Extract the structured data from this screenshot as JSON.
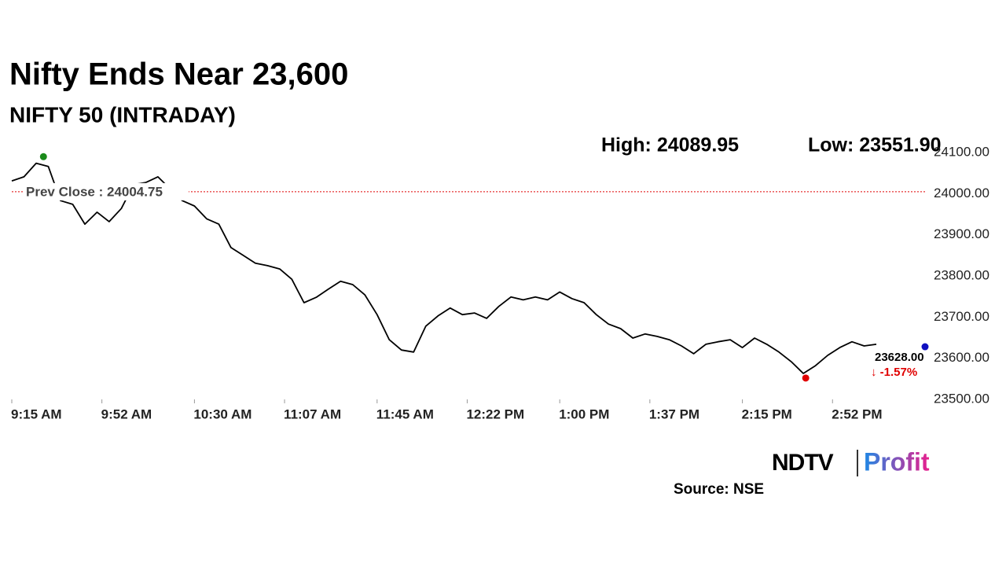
{
  "chart_data": {
    "type": "line",
    "title": "Nifty Ends Near 23,600",
    "subtitle": "NIFTY 50 (INTRADAY)",
    "x": [
      "9:15 AM",
      "9:20 AM",
      "9:25 AM",
      "9:30 AM",
      "9:35 AM",
      "9:40 AM",
      "9:45 AM",
      "9:50 AM",
      "9:55 AM",
      "10:00 AM",
      "10:05 AM",
      "10:10 AM",
      "10:15 AM",
      "10:20 AM",
      "10:25 AM",
      "10:30 AM",
      "10:35 AM",
      "10:40 AM",
      "10:45 AM",
      "10:50 AM",
      "10:55 AM",
      "11:00 AM",
      "11:05 AM",
      "11:10 AM",
      "11:15 AM",
      "11:20 AM",
      "11:25 AM",
      "11:30 AM",
      "11:35 AM",
      "11:40 AM",
      "11:45 AM",
      "11:50 AM",
      "11:55 AM",
      "12:00 PM",
      "12:05 PM",
      "12:10 PM",
      "12:15 PM",
      "12:20 PM",
      "12:25 PM",
      "12:30 PM",
      "12:35 PM",
      "12:40 PM",
      "12:45 PM",
      "12:50 PM",
      "12:55 PM",
      "1:00 PM",
      "1:05 PM",
      "1:10 PM",
      "1:15 PM",
      "1:20 PM",
      "1:25 PM",
      "1:30 PM",
      "1:35 PM",
      "1:40 PM",
      "1:45 PM",
      "1:50 PM",
      "1:55 PM",
      "2:00 PM",
      "2:05 PM",
      "2:10 PM",
      "2:15 PM",
      "2:20 PM",
      "2:25 PM",
      "2:30 PM",
      "2:35 PM",
      "2:40 PM",
      "2:45 PM",
      "2:50 PM",
      "2:55 PM",
      "3:00 PM",
      "3:05 PM",
      "3:10 PM",
      "3:15 PM",
      "3:20 PM",
      "3:25 PM"
    ],
    "series": [
      {
        "name": "NIFTY 50",
        "color": "#000000",
        "values": [
          24031,
          24041,
          24074,
          24066,
          23983,
          23974,
          23926,
          23955,
          23932,
          23964,
          24022,
          24027,
          24041,
          24012,
          23983,
          23970,
          23939,
          23926,
          23869,
          23850,
          23831,
          23825,
          23817,
          23792,
          23735,
          23748,
          23768,
          23787,
          23779,
          23754,
          23706,
          23645,
          23620,
          23615,
          23678,
          23703,
          23722,
          23706,
          23710,
          23697,
          23726,
          23749,
          23742,
          23749,
          23742,
          23761,
          23745,
          23735,
          23706,
          23683,
          23672,
          23649,
          23659,
          23653,
          23645,
          23630,
          23611,
          23634,
          23640,
          23645,
          23626,
          23649,
          23634,
          23615,
          23592,
          23563,
          23582,
          23607,
          23626,
          23640,
          23630,
          23634,
          null,
          null,
          null
        ]
      }
    ],
    "xticks": [
      "9:15 AM",
      "9:52 AM",
      "10:30 AM",
      "11:07 AM",
      "11:45 AM",
      "12:22 PM",
      "1:00 PM",
      "1:37 PM",
      "2:15 PM",
      "2:52 PM"
    ],
    "xlim": [
      "9:15 AM",
      "3:30 PM"
    ],
    "ylim": [
      23500,
      24100
    ],
    "yticks": [
      {
        "value": 23500,
        "label": "23500.00"
      },
      {
        "value": 23600,
        "label": "23600.00"
      },
      {
        "value": 23700,
        "label": "23700.00"
      },
      {
        "value": 23800,
        "label": "23800.00"
      },
      {
        "value": 23900,
        "label": "23900.00"
      },
      {
        "value": 24000,
        "label": "24000.00"
      },
      {
        "value": 24100,
        "label": "24100.00"
      }
    ],
    "high": {
      "value": 24089.95,
      "label": "High: 24089.95",
      "x": "9:28 AM",
      "color": "#1a8a1a"
    },
    "low": {
      "value": 23551.9,
      "label": "Low: 23551.90",
      "x": "2:41 PM",
      "color": "#e00000"
    },
    "prev_close": {
      "value": 24004.75,
      "label": "Prev Close : 24004.75",
      "color": "#e00000"
    },
    "last": {
      "value": 23628.0,
      "label": "23628.00",
      "change": "↓ -1.57%",
      "x": "3:30 PM",
      "color": "#1010c0",
      "change_color": "#e00000"
    },
    "source": "Source: NSE",
    "logo": {
      "brand": "NDTV",
      "product": "Profit"
    }
  }
}
